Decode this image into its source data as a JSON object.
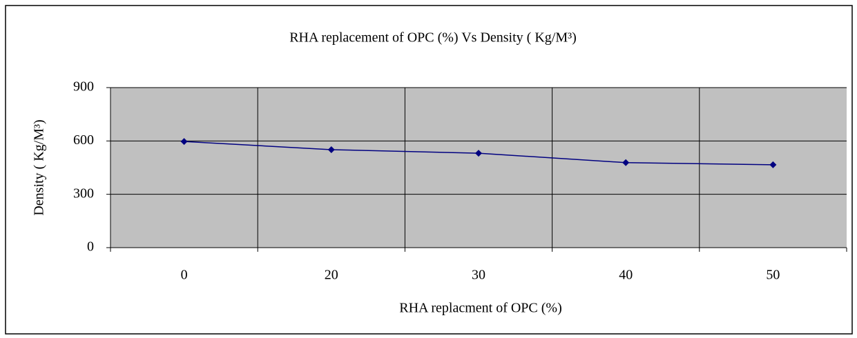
{
  "chart_data": {
    "type": "line",
    "title": "RHA replacement of OPC (%) Vs Density ( Kg/M³)",
    "x_label": "RHA replacment of OPC (%)",
    "y_label": "Density ( Kg/M³)",
    "categories": [
      "0",
      "20",
      "30",
      "40",
      "50"
    ],
    "series": [
      {
        "name": "Density",
        "color": "#000080",
        "values": [
          597,
          551,
          531,
          478,
          466
        ]
      }
    ],
    "ylim": [
      0,
      900
    ],
    "yticks": [
      0,
      300,
      600,
      900
    ],
    "grid": true
  }
}
